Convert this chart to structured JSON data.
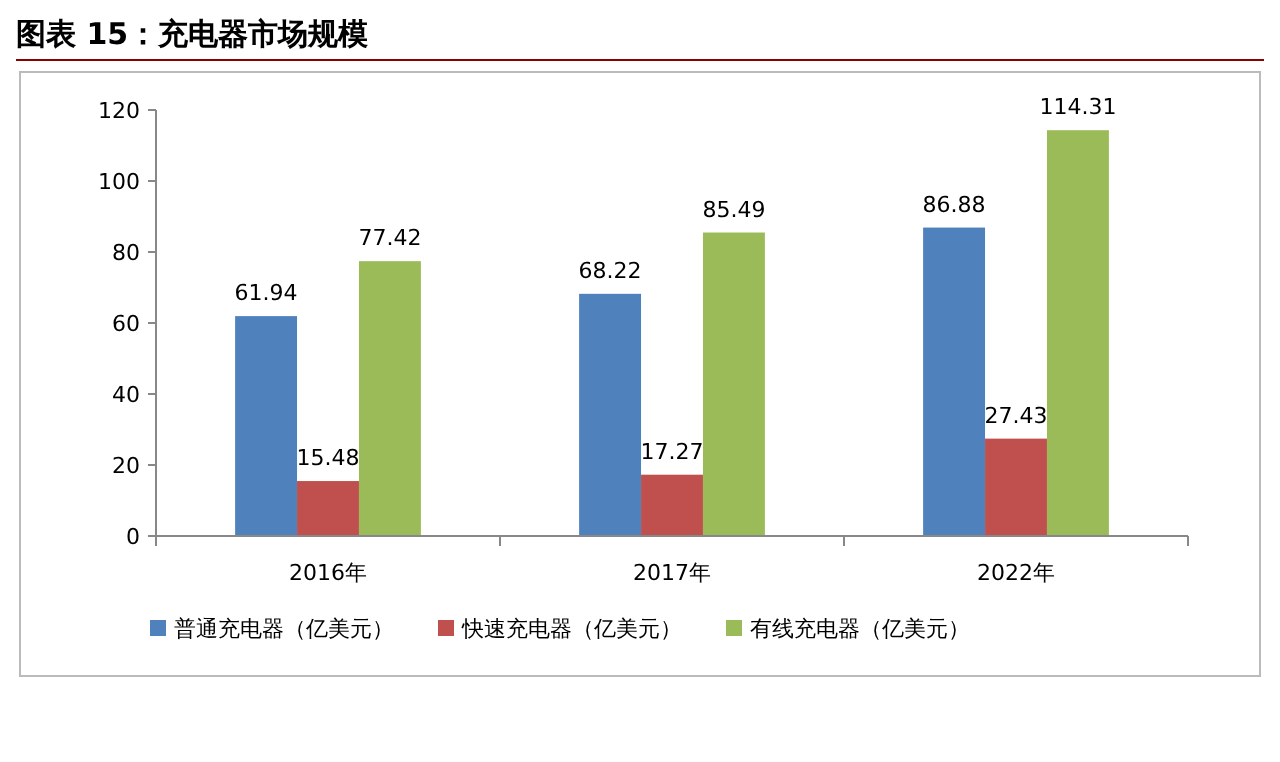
{
  "chart_data": {
    "type": "bar",
    "title": "图表 15：充电器市场规模",
    "categories": [
      "2016年",
      "2017年",
      "2022年"
    ],
    "series": [
      {
        "name": "普通充电器（亿美元）",
        "color": "#4f81bd",
        "values": [
          61.94,
          68.22,
          86.88
        ]
      },
      {
        "name": "快速充电器（亿美元）",
        "color": "#c0504d",
        "values": [
          15.48,
          17.27,
          27.43
        ]
      },
      {
        "name": "有线充电器（亿美元）",
        "color": "#9bbb59",
        "values": [
          77.42,
          85.49,
          114.31
        ]
      }
    ],
    "ylim": [
      0,
      120
    ],
    "yticks": [
      0,
      20,
      40,
      60,
      80,
      100,
      120
    ],
    "data_labels": true,
    "legend": "bottom",
    "grid": false
  }
}
